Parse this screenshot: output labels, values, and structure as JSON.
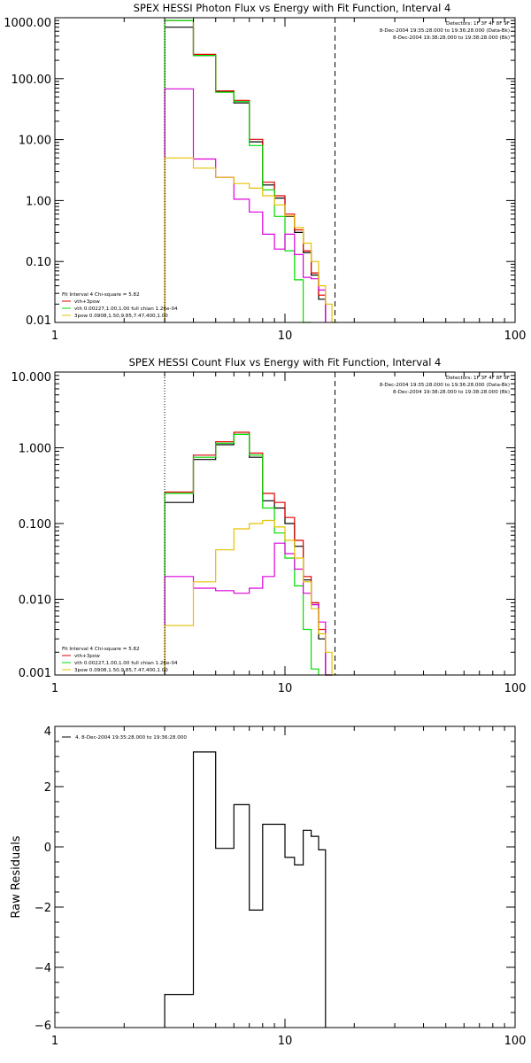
{
  "chart_data": [
    {
      "type": "line",
      "title": "SPEX HESSI Photon Flux vs Energy with Fit Function, Interval 4",
      "xscale": "log",
      "yscale": "log",
      "xlim": [
        1,
        100
      ],
      "ylim": [
        0.01,
        1000
      ],
      "xticks": [
        1,
        10,
        100
      ],
      "xtick_labels": [
        "1",
        "10",
        "100"
      ],
      "yticks": [
        0.01,
        0.1,
        1,
        10,
        100,
        1000
      ],
      "ytick_labels": [
        "0.01",
        "0.10",
        "1.00",
        "10.00",
        "100.00",
        "1000.00"
      ],
      "bin_edges": [
        3,
        4,
        5,
        6,
        7,
        8,
        9,
        10,
        11,
        12,
        13,
        14,
        15,
        16,
        17,
        18,
        19
      ],
      "vlines": [
        {
          "x": 3,
          "style": "dotted"
        },
        {
          "x": 16.5,
          "style": "dashed"
        }
      ],
      "detector_text": [
        "Detectors: 1F 3F 4F 8F 9F",
        "8-Dec-2004 19:35:28.000 to 19:36:28.000 (Data-Bk)",
        "8-Dec-2004 19:38:28.000 to 19:38:28.000 (Bk)"
      ],
      "legend": [
        "Fit Interval  4   Chi-square = 5.82",
        "vth+3pow",
        "vth 0.00227,1.00,1.00  full chian 1.26e-04",
        "3pow 0.0908,1.50,9.85,7.47,400,1.00"
      ],
      "series": [
        {
          "color": "#000000",
          "values": [
            700,
            240,
            62,
            40,
            9.2,
            1.8,
            1.1,
            0.55,
            0.3,
            0.14,
            0.06,
            0.024,
            null,
            null,
            null,
            null
          ]
        },
        {
          "color": "#dd0000",
          "values": [
            900,
            250,
            63,
            44,
            10.1,
            2.0,
            1.2,
            0.6,
            0.33,
            0.15,
            0.065,
            0.028,
            null,
            null,
            null,
            null
          ]
        },
        {
          "color": "#00dd00",
          "values": [
            900,
            240,
            60,
            42,
            8,
            1.5,
            0.55,
            0.15,
            0.05,
            0.01,
            null,
            null,
            null,
            null,
            null,
            null
          ]
        },
        {
          "color": "#dd00dd",
          "values": [
            68,
            4.8,
            2.4,
            1.05,
            0.65,
            0.28,
            0.16,
            0.28,
            0.13,
            0.055,
            0.052,
            0.034,
            null,
            null,
            null,
            null
          ]
        },
        {
          "color": "#e6c000",
          "values": [
            5,
            3.4,
            2.4,
            1.9,
            1.6,
            1.2,
            0.85,
            0.56,
            0.36,
            0.2,
            0.1,
            0.04,
            0.02,
            0.01,
            null,
            null
          ]
        }
      ]
    },
    {
      "type": "line",
      "title": "SPEX HESSI Count Flux vs Energy with Fit Function, Interval 4",
      "xscale": "log",
      "yscale": "log",
      "xlim": [
        1,
        100
      ],
      "ylim": [
        0.001,
        10
      ],
      "xticks": [
        1,
        10,
        100
      ],
      "xtick_labels": [
        "1",
        "10",
        "100"
      ],
      "yticks": [
        0.001,
        0.01,
        0.1,
        1,
        10
      ],
      "ytick_labels": [
        "0.001",
        "0.010",
        "0.100",
        "1.000",
        "10.000"
      ],
      "bin_edges": [
        3,
        4,
        5,
        6,
        7,
        8,
        9,
        10,
        11,
        12,
        13,
        14,
        15,
        16,
        17,
        18,
        19
      ],
      "vlines": [
        {
          "x": 3,
          "style": "dotted"
        },
        {
          "x": 16.5,
          "style": "dashed"
        }
      ],
      "detector_text": [
        "Detectors: 1F 3F 4F 8F 9F",
        "8-Dec-2004 19:35:28.000 to 19:36:28.000 (Data-Bk)",
        "8-Dec-2004 19:38:28.000 to 19:38:28.000 (Bk)"
      ],
      "legend": [
        "Fit Interval  4   Chi-square = 5.82",
        "vth+3pow",
        "vth 0.00227,1.00,1.00  full chian 1.26e-04",
        "3pow 0.0908,1.50,9.85,7.47,400,1.00"
      ],
      "series": [
        {
          "color": "#000000",
          "values": [
            0.19,
            0.7,
            1.1,
            1.5,
            0.75,
            0.2,
            0.16,
            0.1,
            0.05,
            0.018,
            0.0085,
            0.003,
            0.001,
            null,
            null,
            null
          ]
        },
        {
          "color": "#dd0000",
          "values": [
            0.26,
            0.8,
            1.2,
            1.6,
            0.85,
            0.25,
            0.19,
            0.12,
            0.06,
            0.02,
            0.009,
            0.004,
            0.001,
            null,
            null,
            null
          ]
        },
        {
          "color": "#00dd00",
          "values": [
            0.25,
            0.75,
            1.15,
            1.5,
            0.8,
            0.16,
            0.075,
            0.035,
            0.015,
            0.004,
            0.0012,
            null,
            null,
            null,
            null,
            null
          ]
        },
        {
          "color": "#dd00dd",
          "values": [
            0.02,
            0.014,
            0.013,
            0.012,
            0.014,
            0.02,
            0.055,
            0.04,
            0.025,
            0.012,
            0.0085,
            0.005,
            null,
            null,
            null,
            null
          ]
        },
        {
          "color": "#e6c000",
          "values": [
            0.0045,
            0.017,
            0.045,
            0.085,
            0.1,
            0.11,
            0.09,
            0.06,
            0.035,
            0.017,
            0.0075,
            0.0035,
            0.002,
            0.001,
            null,
            null
          ]
        }
      ]
    },
    {
      "type": "line",
      "title": "",
      "ylabel": "Raw Residuals",
      "xscale": "log",
      "yscale": "linear",
      "xlim": [
        1,
        100
      ],
      "ylim": [
        -6,
        4
      ],
      "xticks": [
        1,
        10,
        100
      ],
      "xtick_labels": [
        "1",
        "10",
        "100"
      ],
      "yticks": [
        -6,
        -4,
        -2,
        0,
        2,
        4
      ],
      "ytick_labels": [
        "−6",
        "−4",
        "−2",
        "0",
        "2",
        "4"
      ],
      "bin_edges": [
        3,
        4,
        5,
        6,
        7,
        8,
        9,
        10,
        11,
        12,
        13,
        14,
        15,
        16,
        17,
        18,
        19
      ],
      "legend": [
        "4.  8-Dec-2004 19:35:28.000 to 19:36:28.000"
      ],
      "series": [
        {
          "color": "#000000",
          "values": [
            -4.9,
            3.15,
            -0.05,
            1.4,
            -2.1,
            0.75,
            0.75,
            -0.35,
            -0.6,
            0.55,
            0.35,
            -0.1,
            null,
            null,
            null,
            null
          ]
        }
      ]
    }
  ]
}
